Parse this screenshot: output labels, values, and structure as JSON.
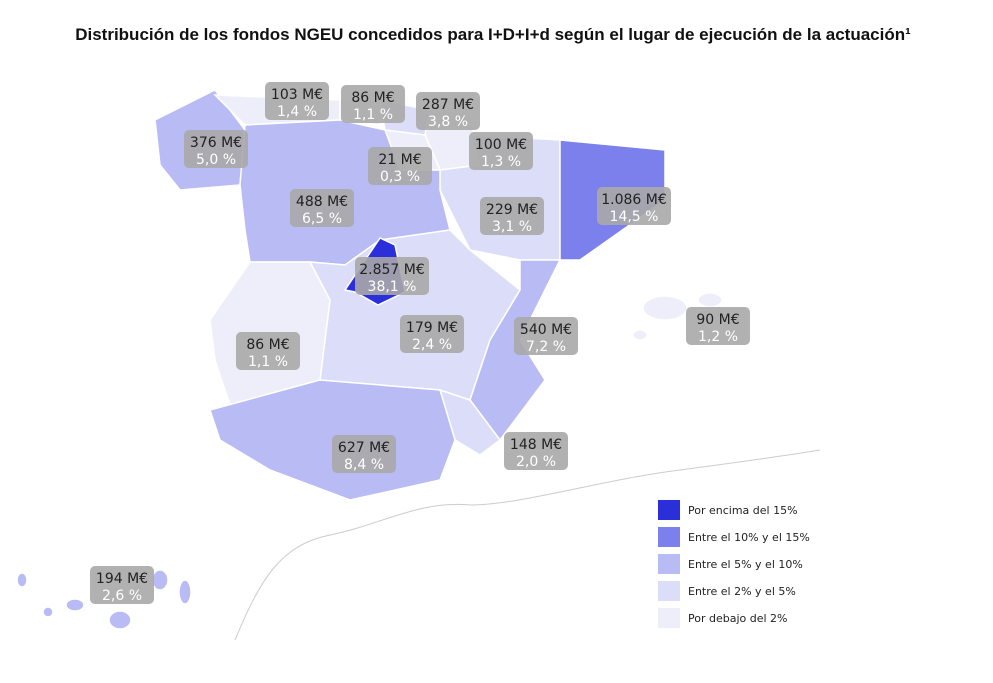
{
  "title": "Distribución de los fondos NGEU concedidos para I+D+I+d según el lugar de ejecución de la actuación¹",
  "regions": [
    {
      "amount": "103 M€",
      "share": "1,4 %"
    },
    {
      "amount": "86 M€",
      "share": "1,1 %"
    },
    {
      "amount": "287 M€",
      "share": "3,8 %"
    },
    {
      "amount": "376 M€",
      "share": "5,0 %"
    },
    {
      "amount": "21 M€",
      "share": "0,3 %"
    },
    {
      "amount": "100 M€",
      "share": "1,3 %"
    },
    {
      "amount": "488 M€",
      "share": "6,5 %"
    },
    {
      "amount": "229 M€",
      "share": "3,1 %"
    },
    {
      "amount": "1.086 M€",
      "share": "14,5 %"
    },
    {
      "amount": "2.857 M€",
      "share": "38,1 %"
    },
    {
      "amount": "179 M€",
      "share": "2,4 %"
    },
    {
      "amount": "540 M€",
      "share": "7,2 %"
    },
    {
      "amount": "90 M€",
      "share": "1,2 %"
    },
    {
      "amount": "86 M€",
      "share": "1,1 %"
    },
    {
      "amount": "627 M€",
      "share": "8,4 %"
    },
    {
      "amount": "148 M€",
      "share": "2,0 %"
    },
    {
      "amount": "194 M€",
      "share": "2,6 %"
    }
  ],
  "legend": [
    {
      "label": "Por encima del 15%",
      "color": "#2b2fd9"
    },
    {
      "label": "Entre el 10% y el 15%",
      "color": "#7b80ec"
    },
    {
      "label": "Entre el 5% y el 10%",
      "color": "#b8bbf4"
    },
    {
      "label": "Entre el 2% y el 5%",
      "color": "#dcddf8"
    },
    {
      "label": "Por debajo del 2%",
      "color": "#eeeefb"
    }
  ]
}
